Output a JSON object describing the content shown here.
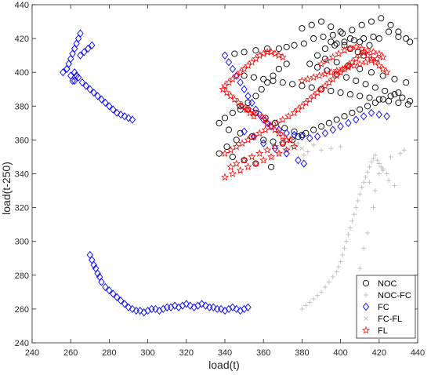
{
  "chart_data": {
    "type": "scatter",
    "title": "",
    "xlabel": "load(t)",
    "ylabel": "load(t-250)",
    "xlim": [
      240,
      440
    ],
    "ylim": [
      240,
      440
    ],
    "xticks": [
      240,
      260,
      280,
      300,
      320,
      340,
      360,
      380,
      400,
      420,
      440
    ],
    "yticks": [
      240,
      260,
      280,
      300,
      320,
      340,
      360,
      380,
      400,
      420,
      440
    ],
    "grid": false,
    "legend_position": "bottom-right",
    "series": [
      {
        "name": "NOC",
        "marker": "circle",
        "color": "#000000",
        "x": [
          345,
          350,
          356,
          362,
          368,
          372,
          376,
          381,
          386,
          391,
          396,
          401,
          406,
          411,
          416,
          421,
          426,
          430,
          434,
          380,
          385,
          390,
          395,
          400,
          405,
          410,
          415,
          420,
          425,
          430,
          436,
          388,
          392,
          398,
          404,
          410,
          416,
          422,
          428,
          434,
          372,
          368,
          365,
          362,
          359,
          356,
          352,
          348,
          344,
          340,
          337,
          342,
          348,
          354,
          360,
          365,
          370,
          375,
          378,
          382,
          386,
          390,
          394,
          398,
          402,
          406,
          410,
          414,
          418,
          422,
          426,
          430,
          350,
          355,
          360,
          365,
          370,
          375,
          380,
          385,
          390,
          395,
          400,
          405,
          410,
          415,
          420,
          425,
          430,
          435,
          348,
          352,
          356,
          361,
          366,
          371,
          376,
          380,
          346,
          341,
          337,
          344,
          350,
          356,
          364,
          392,
          397,
          402,
          407,
          412,
          417,
          384,
          388,
          393,
          398,
          403,
          408,
          413,
          418,
          423,
          428,
          432,
          436,
          412,
          409,
          405,
          402,
          398,
          395
        ],
        "y": [
          411,
          412,
          413,
          414,
          414,
          415,
          416,
          417,
          420,
          421,
          422,
          423,
          425,
          428,
          430,
          432,
          428,
          424,
          420,
          426,
          428,
          430,
          427,
          424,
          420,
          418,
          416,
          420,
          424,
          421,
          418,
          410,
          408,
          406,
          404,
          402,
          400,
          398,
          396,
          394,
          405,
          402,
          398,
          394,
          390,
          386,
          382,
          378,
          376,
          373,
          370,
          366,
          364,
          362,
          360,
          359,
          358,
          360,
          362,
          364,
          366,
          368,
          370,
          372,
          374,
          376,
          378,
          380,
          382,
          384,
          386,
          388,
          398,
          397,
          396,
          395,
          394,
          393,
          392,
          391,
          390,
          389,
          388,
          387,
          386,
          385,
          384,
          383,
          382,
          381,
          380,
          378,
          376,
          373,
          370,
          367,
          365,
          363,
          360,
          356,
          352,
          350,
          348,
          346,
          344,
          414,
          416,
          418,
          419,
          420,
          421,
          405,
          403,
          401,
          399,
          397,
          395,
          393,
          391,
          389,
          387,
          385,
          383,
          410,
          412,
          414,
          416,
          417,
          418
        ]
      },
      {
        "name": "NOC-FC",
        "marker": "plus",
        "color": "#bdbdbd",
        "x": [
          380,
          382,
          384,
          386,
          388,
          390,
          392,
          394,
          396,
          398,
          399,
          400,
          401,
          402,
          403,
          404,
          405,
          406,
          407,
          408,
          409,
          410,
          411,
          412,
          413,
          414,
          415,
          416,
          417,
          418,
          419,
          420,
          421,
          422,
          424,
          425,
          428,
          376,
          372,
          415,
          418,
          400,
          395,
          390,
          386,
          383,
          381,
          378,
          410,
          412,
          414,
          417,
          420,
          422,
          426,
          431,
          433
        ],
        "y": [
          260,
          262,
          264,
          266,
          268,
          270,
          273,
          276,
          279,
          282,
          285,
          288,
          292,
          296,
          300,
          304,
          308,
          312,
          316,
          320,
          324,
          328,
          332,
          335,
          338,
          341,
          344,
          347,
          349,
          351,
          348,
          346,
          344,
          342,
          340,
          336,
          333,
          356,
          355,
          335,
          330,
          356,
          355,
          354,
          357,
          353,
          351,
          358,
          284,
          296,
          305,
          320,
          340,
          343,
          350,
          352,
          354
        ]
      },
      {
        "name": "FC",
        "marker": "diamond",
        "color": "#0000ff",
        "x": [
          256,
          258,
          259,
          260,
          261,
          262,
          263,
          264,
          265,
          263,
          261,
          262,
          264,
          266,
          268,
          270,
          272,
          274,
          276,
          278,
          280,
          282,
          284,
          286,
          288,
          290,
          292,
          262,
          260,
          258,
          265,
          267,
          269,
          271,
          270,
          271,
          272,
          273,
          274,
          275,
          276,
          278,
          280,
          282,
          284,
          286,
          288,
          290,
          292,
          294,
          296,
          298,
          300,
          302,
          304,
          306,
          308,
          310,
          312,
          314,
          316,
          318,
          320,
          322,
          324,
          326,
          328,
          330,
          332,
          334,
          336,
          338,
          340,
          342,
          344,
          346,
          348,
          350,
          352,
          340,
          342,
          344,
          346,
          348,
          350,
          352,
          354,
          356,
          358,
          360,
          362,
          364,
          368,
          372,
          376,
          380,
          384,
          388,
          392,
          396,
          400,
          404,
          408,
          412,
          416,
          420,
          424,
          350,
          355,
          360,
          366,
          372,
          378,
          381
        ],
        "y": [
          400,
          402,
          405,
          408,
          411,
          414,
          417,
          420,
          423,
          398,
          395,
          400,
          397,
          394,
          392,
          390,
          388,
          386,
          384,
          382,
          380,
          378,
          376,
          375,
          374,
          373,
          372,
          395,
          398,
          402,
          410,
          412,
          414,
          416,
          292,
          289,
          286,
          284,
          281,
          279,
          276,
          273,
          271,
          269,
          267,
          265,
          263,
          261,
          260,
          259,
          259,
          258,
          259,
          260,
          260,
          259,
          260,
          261,
          261,
          262,
          261,
          262,
          263,
          262,
          261,
          262,
          263,
          262,
          261,
          261,
          260,
          260,
          259,
          260,
          261,
          260,
          259,
          260,
          261,
          410,
          406,
          402,
          398,
          394,
          390,
          386,
          382,
          378,
          375,
          372,
          370,
          368,
          366,
          364,
          363,
          362,
          361,
          362,
          364,
          366,
          368,
          370,
          372,
          374,
          376,
          375,
          374,
          365,
          362,
          358,
          355,
          352,
          348,
          346
        ]
      },
      {
        "name": "FC-FL",
        "marker": "x",
        "color": "#bdbdbd",
        "x": [
          368,
          371,
          374,
          377,
          380
        ],
        "y": [
          352,
          354,
          356,
          357,
          355
        ]
      },
      {
        "name": "FL",
        "marker": "star",
        "color": "#ff0000",
        "x": [
          339,
          340,
          342,
          344,
          346,
          348,
          350,
          352,
          354,
          356,
          358,
          360,
          362,
          364,
          366,
          368,
          370,
          341,
          343,
          345,
          347,
          349,
          351,
          353,
          355,
          340,
          343,
          346,
          349,
          352,
          355,
          358,
          361,
          364,
          367,
          370,
          373,
          376,
          378,
          380,
          382,
          384,
          386,
          388,
          390,
          392,
          394,
          396,
          398,
          400,
          402,
          404,
          406,
          408,
          410,
          412,
          414,
          416,
          418,
          420,
          422,
          424,
          390,
          393,
          396,
          399,
          402,
          405,
          408,
          411,
          414,
          417,
          420,
          380,
          383,
          386,
          389,
          392,
          395,
          398,
          401,
          404,
          407,
          410,
          413,
          416,
          419,
          422,
          343,
          346,
          350,
          354,
          358,
          362,
          366,
          370,
          374,
          340,
          344,
          348,
          352,
          356,
          360,
          364,
          368,
          372,
          376,
          349,
          352,
          355,
          359,
          361,
          362,
          364,
          366,
          368,
          370,
          372
        ],
        "y": [
          390,
          392,
          394,
          396,
          398,
          400,
          402,
          404,
          406,
          408,
          410,
          411,
          412,
          412,
          411,
          410,
          409,
          388,
          386,
          384,
          382,
          380,
          378,
          376,
          374,
          352,
          354,
          356,
          358,
          360,
          362,
          364,
          366,
          368,
          370,
          372,
          374,
          376,
          378,
          380,
          382,
          384,
          386,
          388,
          390,
          392,
          394,
          396,
          398,
          400,
          402,
          404,
          406,
          408,
          410,
          412,
          410,
          408,
          406,
          404,
          402,
          400,
          405,
          407,
          409,
          411,
          413,
          414,
          415,
          414,
          413,
          412,
          411,
          395,
          396,
          397,
          398,
          399,
          400,
          401,
          402,
          403,
          404,
          405,
          406,
          407,
          408,
          409,
          344,
          346,
          348,
          350,
          352,
          354,
          356,
          358,
          360,
          338,
          340,
          342,
          344,
          346,
          348,
          350,
          352,
          354,
          356,
          380,
          378,
          376,
          374,
          372,
          370,
          368,
          366,
          364,
          362,
          360
        ]
      }
    ]
  }
}
